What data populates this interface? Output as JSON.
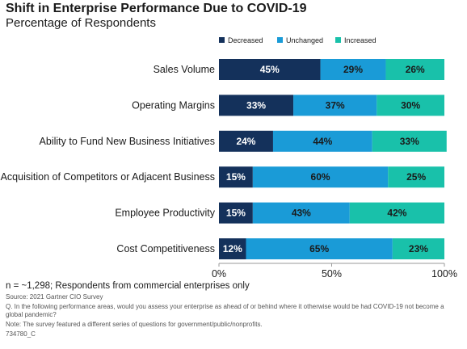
{
  "header": {
    "title": "Shift in Enterprise Performance Due to COVID-19",
    "subtitle": "Percentage of Respondents"
  },
  "colors": {
    "decreased": "#14315b",
    "unchanged": "#1a9bd7",
    "increased": "#19c1aa"
  },
  "chart_data": {
    "type": "bar",
    "orientation": "horizontal",
    "stacked": true,
    "categories": [
      "Sales Volume",
      "Operating Margins",
      "Ability to Fund New Business Initiatives",
      "Acquisition of Competitors or Adjacent Business",
      "Employee Productivity",
      "Cost Competitiveness"
    ],
    "series": [
      {
        "name": "Decreased",
        "values": [
          45,
          33,
          24,
          15,
          15,
          12
        ],
        "labels": [
          "45%",
          "33%",
          "24%",
          "15%",
          "15%",
          "12%"
        ]
      },
      {
        "name": "Unchanged",
        "values": [
          29,
          37,
          44,
          60,
          43,
          65
        ],
        "labels": [
          "29%",
          "37%",
          "44%",
          "60%",
          "43%",
          "65%"
        ]
      },
      {
        "name": "Increased",
        "values": [
          26,
          30,
          33,
          25,
          42,
          23
        ],
        "labels": [
          "26%",
          "30%",
          "33%",
          "25%",
          "42%",
          "23%"
        ]
      }
    ],
    "xlim": [
      0,
      100
    ],
    "xticks": [
      0,
      50,
      100
    ],
    "xtick_labels": [
      "0%",
      "50%",
      "100%"
    ],
    "legend_position": "top-right",
    "grid": false
  },
  "footer": {
    "n_text": "n = ~1,298; Respondents from commercial enterprises only",
    "source": "Source: 2021 Gartner CIO Survey",
    "question": "Q. In the following performance areas, would you assess your enterprise as ahead of or behind where it otherwise would be had COVID-19 not become a global pandemic?",
    "note": "Note: The survey featured a different series of questions for government/public/nonprofits.",
    "code": "734780_C"
  }
}
